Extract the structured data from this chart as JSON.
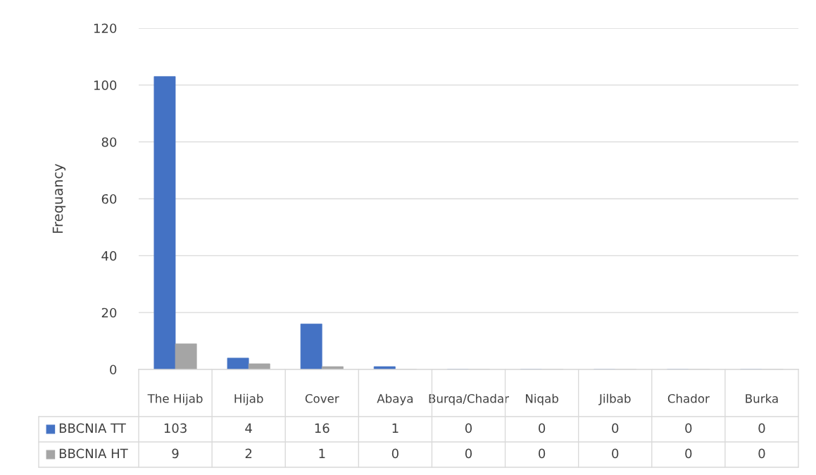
{
  "chart_data": {
    "type": "bar",
    "ylabel": "Frequancy",
    "categories": [
      "The Hijab",
      "Hijab",
      "Cover",
      "Abaya",
      "Burqa/Chadar",
      "Niqab",
      "Jilbab",
      "Chador",
      "Burka"
    ],
    "series": [
      {
        "name": "BBCNIA TT",
        "color": "#4472c4",
        "values": [
          103,
          4,
          16,
          1,
          0,
          0,
          0,
          0,
          0
        ]
      },
      {
        "name": "BBCNIA HT",
        "color": "#a5a5a5",
        "values": [
          9,
          2,
          1,
          0,
          0,
          0,
          0,
          0,
          0
        ]
      }
    ],
    "ylim": [
      0,
      120
    ],
    "yticks": [
      0,
      20,
      40,
      60,
      80,
      100,
      120
    ],
    "grid": "y",
    "legend": "bottom",
    "data_labels": true
  }
}
